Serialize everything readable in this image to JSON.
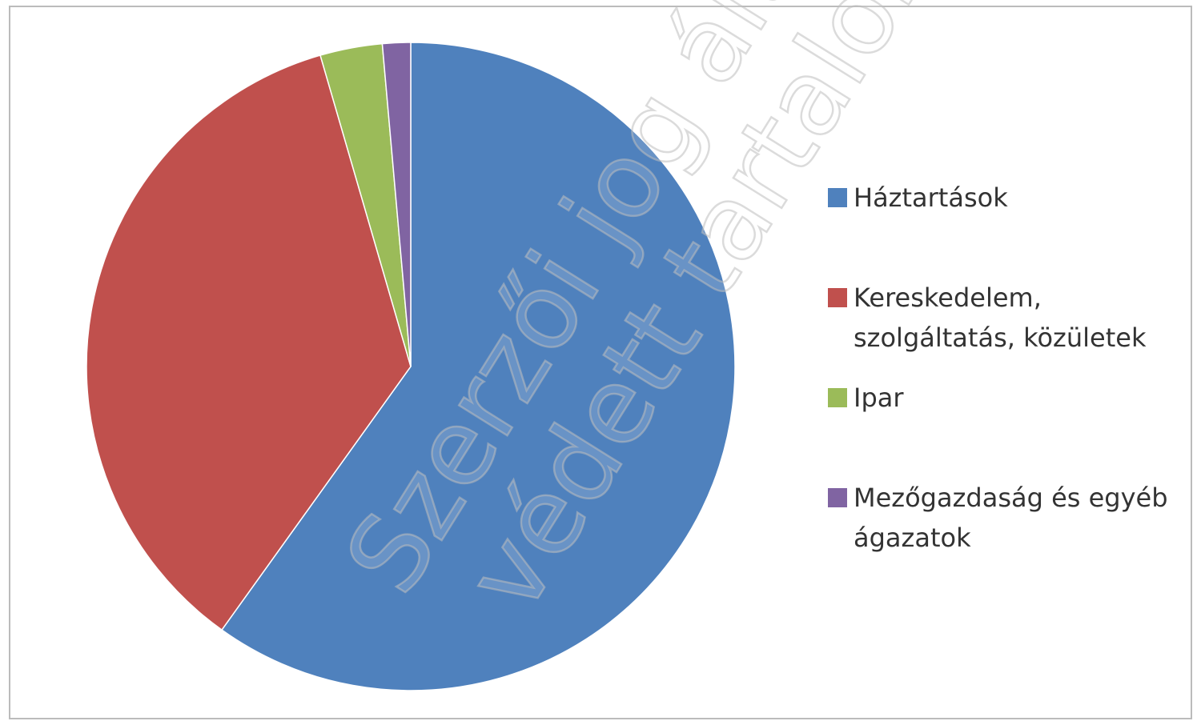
{
  "chart_data": {
    "type": "pie",
    "categories": [
      "Háztartások",
      "Kereskedelem, szolgáltatás, közületek",
      "Ipar",
      "Mezőgazdaság és egyéb ágazatok"
    ],
    "values": [
      59.9,
      35.6,
      3.1,
      1.4
    ],
    "colors": [
      "#4f81bd",
      "#c0504d",
      "#9bbb59",
      "#8064a2"
    ],
    "legend": "right",
    "watermark": [
      "Szerzői jog által",
      "védett tartalom!"
    ]
  }
}
